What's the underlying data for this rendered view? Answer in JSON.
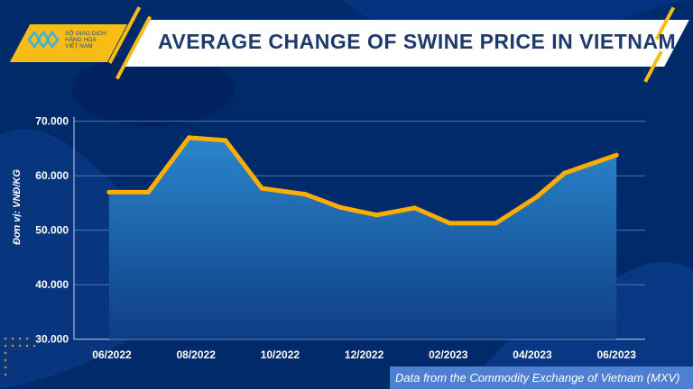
{
  "header": {
    "title": "AVERAGE CHANGE OF SWINE PRICE IN VIETNAM",
    "logo_text": "SỞ GIAO DỊCH HÀNG HÓA VIỆT NAM"
  },
  "footer": {
    "source": "Data from the Commodity Exchange of Vietnam (MXV)"
  },
  "colors": {
    "background": "#012a6b",
    "line": "#ffae00",
    "area_top": "#2a86cc",
    "area_bottom": "#0e3d84",
    "accent": "#f7bd16"
  },
  "chart_data": {
    "type": "area",
    "title": "AVERAGE CHANGE OF SWINE PRICE IN VIETNAM",
    "ylabel": "Đơn vị: VNĐ/KG",
    "xlabel": "",
    "ylim": [
      30000,
      70000
    ],
    "yticks": [
      "30.000",
      "40.000",
      "50.000",
      "60.000",
      "70.000"
    ],
    "ytick_values": [
      30000,
      40000,
      50000,
      60000,
      70000
    ],
    "xticks": [
      "06/2022",
      "08/2022",
      "10/2022",
      "12/2022",
      "02/2023",
      "04/2023",
      "06/2023"
    ],
    "grid": true,
    "x": [
      "2022-05-29",
      "2022-06-27",
      "2022-07-26",
      "2022-08-22",
      "2022-09-18",
      "2022-10-19",
      "2022-11-14",
      "2022-12-10",
      "2023-01-07",
      "2023-02-02",
      "2023-03-05",
      "2023-04-04",
      "2023-04-24",
      "2023-06-01"
    ],
    "values": [
      57000,
      57000,
      67000,
      66500,
      57700,
      56600,
      54200,
      52800,
      54100,
      51300,
      51300,
      56100,
      60500,
      63800
    ]
  }
}
